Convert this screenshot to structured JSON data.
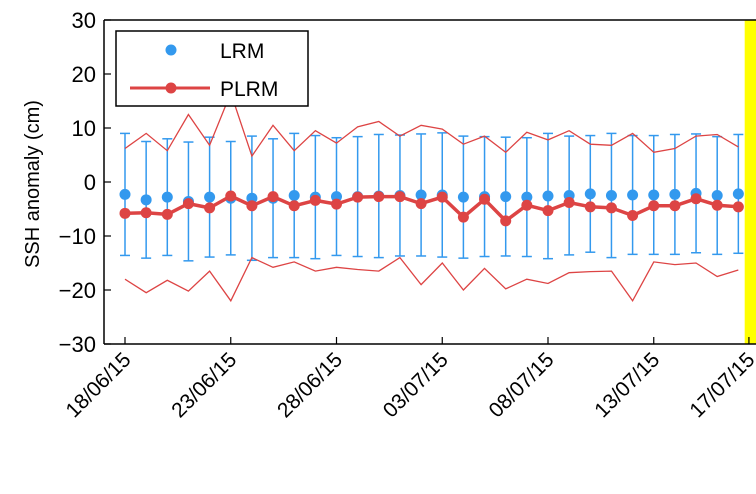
{
  "chart_data": {
    "type": "line",
    "title": "",
    "xlabel": "",
    "ylabel": "SSH anomaly (cm)",
    "ylim": [
      -30,
      30
    ],
    "yticks": [
      -30,
      -20,
      -10,
      0,
      10,
      20,
      30
    ],
    "grid": false,
    "legend_position": "top-left",
    "highlight_band": {
      "x_start": 29.3,
      "x_end": 30.3,
      "color": "#ffff00"
    },
    "x_tick_positions": [
      0,
      5,
      10,
      15,
      20,
      25,
      29.5
    ],
    "x_tick_labels": [
      "18/06/15",
      "23/06/15",
      "28/06/15",
      "03/07/15",
      "08/07/15",
      "13/07/15",
      "17/07/15"
    ],
    "x": [
      0,
      1,
      2,
      3,
      4,
      5,
      6,
      7,
      8,
      9,
      10,
      11,
      12,
      13,
      14,
      15,
      16,
      17,
      18,
      19,
      20,
      21,
      22,
      23,
      24,
      25,
      26,
      27,
      28,
      29
    ],
    "series": [
      {
        "name": "LRM",
        "color": "#3399ee",
        "style": "markers-with-errorbars",
        "values": [
          -2.3,
          -3.3,
          -2.8,
          -3.6,
          -2.8,
          -3.0,
          -3.0,
          -3.0,
          -2.5,
          -2.8,
          -2.7,
          -2.7,
          -2.6,
          -2.5,
          -2.4,
          -2.4,
          -2.8,
          -2.7,
          -2.7,
          -2.8,
          -2.6,
          -2.5,
          -2.2,
          -2.5,
          -2.4,
          -2.4,
          -2.3,
          -2.1,
          -2.5,
          -2.2
        ],
        "error": [
          11.3,
          10.8,
          10.8,
          11.0,
          11.1,
          10.5,
          11.5,
          11.0,
          11.5,
          11.4,
          10.9,
          11.1,
          11.4,
          11.2,
          11.3,
          11.5,
          11.3,
          11.1,
          11.0,
          11.0,
          11.6,
          11.0,
          10.8,
          11.5,
          11.0,
          11.0,
          11.1,
          11.0,
          10.9,
          11.0
        ]
      },
      {
        "name": "PLRM",
        "color": "#dd4444",
        "style": "line-markers-with-envelope",
        "values": [
          -5.8,
          -5.7,
          -6.0,
          -4.0,
          -4.8,
          -2.6,
          -4.4,
          -2.7,
          -4.4,
          -3.4,
          -4.1,
          -2.8,
          -2.7,
          -2.7,
          -4.0,
          -2.8,
          -6.5,
          -3.2,
          -7.2,
          -4.3,
          -5.3,
          -3.8,
          -4.6,
          -4.8,
          -6.2,
          -4.4,
          -4.4,
          -3.1,
          -4.3,
          -4.6
        ],
        "upper": [
          6.2,
          9.0,
          5.8,
          12.5,
          6.8,
          16.5,
          4.8,
          10.5,
          5.8,
          9.5,
          7.2,
          10.2,
          11.2,
          8.5,
          10.5,
          9.8,
          7.0,
          8.5,
          5.5,
          9.2,
          7.8,
          9.5,
          7.0,
          6.8,
          9.0,
          5.5,
          6.2,
          8.5,
          8.8,
          6.5
        ],
        "lower": [
          -18.0,
          -20.5,
          -18.2,
          -20.2,
          -16.5,
          -22.0,
          -14.0,
          -15.8,
          -14.8,
          -16.5,
          -15.8,
          -16.2,
          -16.5,
          -14.0,
          -19.0,
          -15.0,
          -20.0,
          -16.0,
          -19.8,
          -18.0,
          -18.8,
          -16.8,
          -16.6,
          -16.5,
          -22.0,
          -14.8,
          -15.3,
          -15.0,
          -17.5,
          -16.3
        ]
      }
    ]
  }
}
